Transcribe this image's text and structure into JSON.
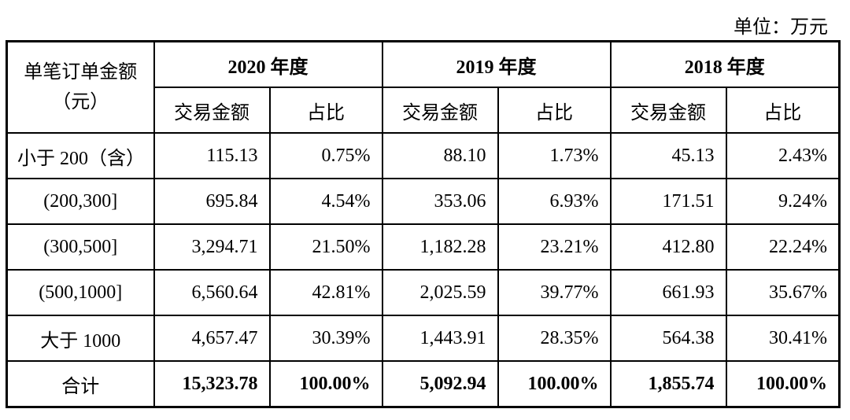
{
  "unit": "单位：万元",
  "header": {
    "left_col": [
      "单笔订单金额",
      "（元）"
    ],
    "years": [
      "2020 年度",
      "2019 年度",
      "2018 年度"
    ],
    "sub_cols": [
      "交易金额",
      "占比"
    ]
  },
  "rows": [
    {
      "label": "小于 200（含）",
      "values": [
        "115.13",
        "0.75%",
        "88.10",
        "1.73%",
        "45.13",
        "2.43%"
      ]
    },
    {
      "label": "(200,300]",
      "values": [
        "695.84",
        "4.54%",
        "353.06",
        "6.93%",
        "171.51",
        "9.24%"
      ]
    },
    {
      "label": "(300,500]",
      "values": [
        "3,294.71",
        "21.50%",
        "1,182.28",
        "23.21%",
        "412.80",
        "22.24%"
      ]
    },
    {
      "label": "(500,1000]",
      "values": [
        "6,560.64",
        "42.81%",
        "2,025.59",
        "39.77%",
        "661.93",
        "35.67%"
      ]
    },
    {
      "label": "大于 1000",
      "values": [
        "4,657.47",
        "30.39%",
        "1,443.91",
        "28.35%",
        "564.38",
        "30.41%"
      ]
    },
    {
      "label": "合计",
      "values": [
        "15,323.78",
        "100.00%",
        "5,092.94",
        "100.00%",
        "1,855.74",
        "100.00%"
      ]
    }
  ]
}
